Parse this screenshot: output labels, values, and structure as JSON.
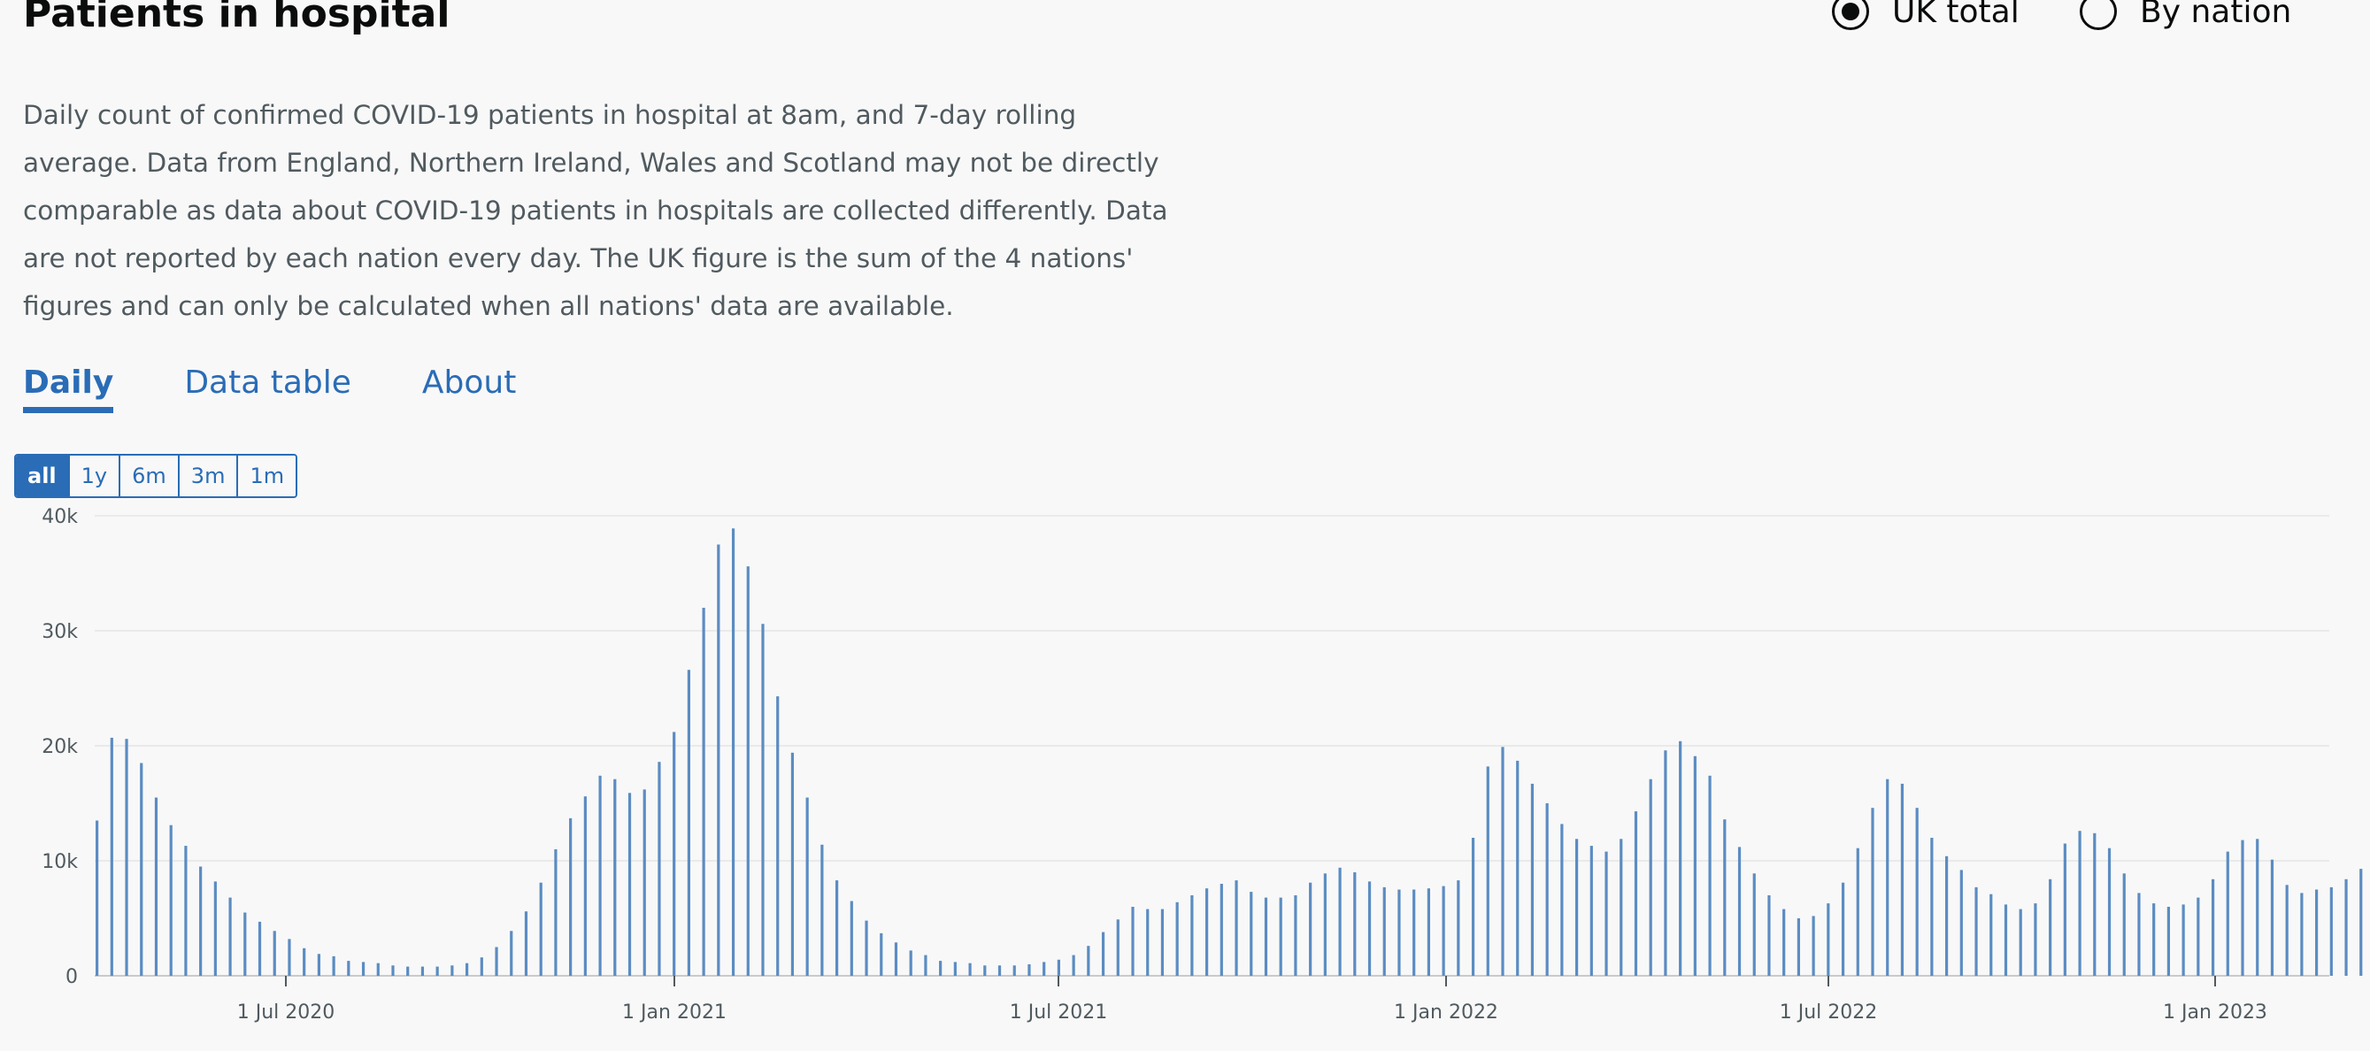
{
  "title": "Patients in hospital",
  "view_options": [
    {
      "label": "UK total",
      "selected": true
    },
    {
      "label": "By nation",
      "selected": false
    }
  ],
  "description": "Daily count of confirmed COVID-19 patients in hospital at 8am, and 7-day rolling average. Data from England, Northern Ireland, Wales and Scotland may not be directly comparable as data about COVID-19 patients in hospitals are collected differently. Data are not reported by each nation every day. The UK figure is the sum of the 4 nations' figures and can only be calculated when all nations' data are available.",
  "tabs": [
    {
      "label": "Daily",
      "active": true
    },
    {
      "label": "Data table",
      "active": false
    },
    {
      "label": "About",
      "active": false
    }
  ],
  "range_buttons": [
    {
      "label": "all",
      "active": true
    },
    {
      "label": "1y",
      "active": false
    },
    {
      "label": "6m",
      "active": false
    },
    {
      "label": "3m",
      "active": false
    },
    {
      "label": "1m",
      "active": false
    }
  ],
  "colors": {
    "accent": "#2a6cb6",
    "bar": "#5b8cc2",
    "grid": "#e6e6e6",
    "text": "#0b0c0c",
    "muted": "#505a5f"
  },
  "chart_data": {
    "type": "bar",
    "title": "",
    "xlabel": "",
    "ylabel": "",
    "ylim": [
      0,
      40000
    ],
    "y_ticks": [
      {
        "value": 0,
        "label": "0"
      },
      {
        "value": 10000,
        "label": "10k"
      },
      {
        "value": 20000,
        "label": "20k"
      },
      {
        "value": 30000,
        "label": "30k"
      },
      {
        "value": 40000,
        "label": "40k"
      }
    ],
    "x_ticks": [
      "1 Jul 2020",
      "1 Jan 2021",
      "1 Jul 2021",
      "1 Jan 2022",
      "1 Jul 2022",
      "1 Jan 2023"
    ],
    "grid": true,
    "series": [
      {
        "values": [
          13500,
          20700,
          20600,
          18500,
          15500,
          13100,
          11300,
          9500,
          8200,
          6800,
          5500,
          4700,
          3900,
          3200,
          2400,
          1900,
          1700,
          1300,
          1200,
          1100,
          900,
          800,
          800,
          800,
          900,
          1100,
          1600,
          2500,
          3900,
          5600,
          8100,
          11000,
          13700,
          15600,
          17400,
          17100,
          15900,
          16200,
          18600,
          21200,
          26600,
          32000,
          37500,
          38900,
          35600,
          30600,
          24300,
          19400,
          15500,
          11400,
          8300,
          6500,
          4800,
          3700,
          2900,
          2200,
          1800,
          1300,
          1200,
          1100,
          900,
          900,
          900,
          1000,
          1200,
          1400,
          1800,
          2600,
          3800,
          4900,
          6000,
          5800,
          5800,
          6400,
          7000,
          7600,
          8000,
          8300,
          7300,
          6800,
          6800,
          7000,
          8100,
          8900,
          9400,
          9000,
          8200,
          7700,
          7500,
          7500,
          7600,
          7800,
          8300,
          12000,
          18200,
          19900,
          18700,
          16700,
          15000,
          13200,
          11900,
          11300,
          10800,
          11900,
          14300,
          17100,
          19600,
          20400,
          19100,
          17400,
          13600,
          11200,
          8900,
          7000,
          5800,
          5000,
          5200,
          6300,
          8100,
          11100,
          14600,
          17100,
          16700,
          14600,
          12000,
          10400,
          9200,
          7700,
          7100,
          6200,
          5800,
          6300,
          8400,
          11500,
          12600,
          12400,
          11100,
          8900,
          7200,
          6300,
          6000,
          6200,
          6800,
          8400,
          10800,
          11800,
          11900,
          10100,
          7900,
          7200,
          7500,
          7700,
          8400,
          9300
        ]
      }
    ]
  }
}
